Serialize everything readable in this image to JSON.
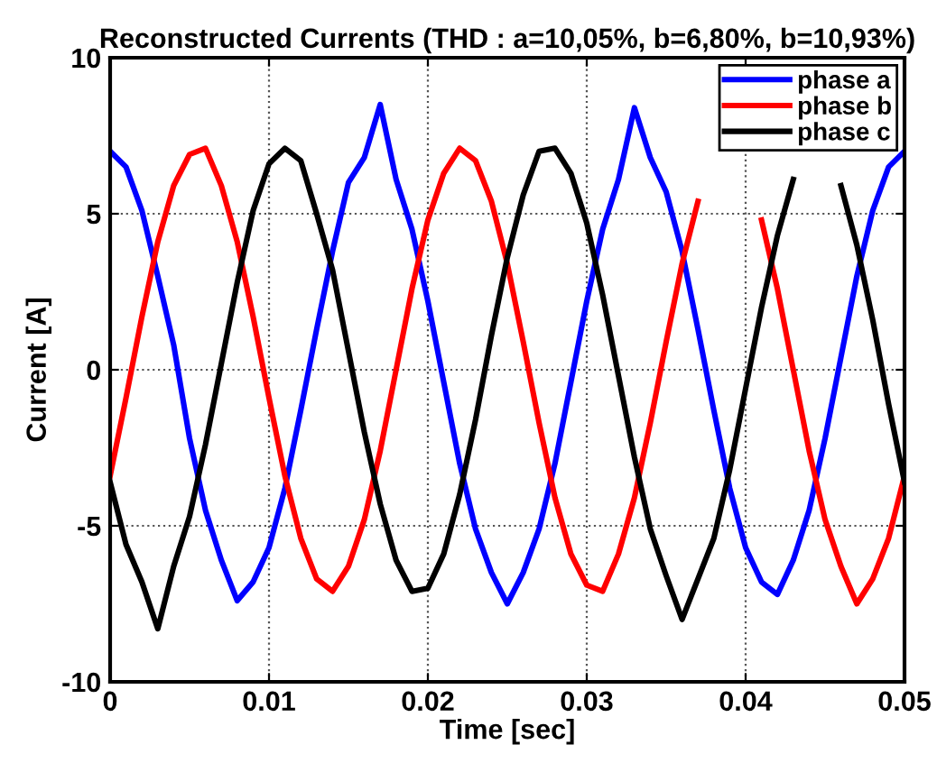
{
  "chart_data": {
    "type": "line",
    "title": "Reconstructed Currents (THD : a=10,05%, b=6,80%, b=10,93%)",
    "xlabel": "Time [sec]",
    "ylabel": "Current [A]",
    "x": [
      0,
      0.001,
      0.002,
      0.003,
      0.004,
      0.005,
      0.006,
      0.007,
      0.008,
      0.009,
      0.01,
      0.011,
      0.012,
      0.013,
      0.014,
      0.015,
      0.016,
      0.017,
      0.018,
      0.019,
      0.02,
      0.021,
      0.022,
      0.023,
      0.024,
      0.025,
      0.026,
      0.027,
      0.028,
      0.029,
      0.03,
      0.031,
      0.032,
      0.033,
      0.034,
      0.035,
      0.036,
      0.037,
      0.038,
      0.039,
      0.04,
      0.041,
      0.042,
      0.043,
      0.044,
      0.045,
      0.046,
      0.047,
      0.048,
      0.049,
      0.05
    ],
    "series": [
      {
        "name": "phase a",
        "color": "#0000ff",
        "values": [
          7,
          6.5,
          5.1,
          3.0,
          0.8,
          -2.2,
          -4.5,
          -6.1,
          -7.4,
          -6.8,
          -5.7,
          -3.8,
          -1.3,
          1.3,
          3.8,
          6.0,
          6.8,
          8.5,
          6.1,
          4.5,
          2.2,
          -0.4,
          -3.0,
          -5.1,
          -6.5,
          -7.5,
          -6.5,
          -5.1,
          -3.0,
          -0.4,
          2.2,
          4.5,
          6.1,
          8.4,
          6.8,
          5.7,
          3.8,
          1.3,
          -1.3,
          -3.8,
          -5.7,
          -6.8,
          -7.2,
          -6.1,
          -4.5,
          -2.2,
          0.4,
          3.0,
          5.1,
          6.5,
          7
        ]
      },
      {
        "name": "phase b",
        "color": "#ff0000",
        "values": [
          -3.4,
          -0.9,
          1.7,
          4.1,
          5.9,
          6.9,
          7.1,
          5.9,
          4.1,
          1.7,
          -0.9,
          -3.4,
          -5.4,
          -6.7,
          -7.1,
          -6.3,
          -4.8,
          -2.6,
          0,
          2.6,
          4.8,
          6.3,
          7.1,
          6.7,
          5.4,
          3.4,
          0.9,
          -1.7,
          -4.1,
          -5.9,
          -6.9,
          -7.1,
          -5.9,
          -4.1,
          -1.7,
          0.9,
          3.4,
          5.4,
          null,
          null,
          null,
          4.8,
          2.6,
          0,
          -2.6,
          -4.8,
          -6.3,
          -7.5,
          -6.7,
          -5.4,
          -3.4
        ]
      },
      {
        "name": "phase c",
        "color": "#000000",
        "values": [
          -3.6,
          -5.6,
          -6.8,
          -8.3,
          -6.3,
          -4.7,
          -2.4,
          0.2,
          2.8,
          5.1,
          6.6,
          7.1,
          6.7,
          5.0,
          3.2,
          0.6,
          -2.0,
          -4.3,
          -6.1,
          -7.1,
          -7.0,
          -5.9,
          -4.0,
          -1.6,
          1.1,
          3.6,
          5.6,
          7.0,
          7.1,
          6.3,
          4.7,
          2.4,
          -0.2,
          -2.8,
          -5.1,
          -6.6,
          -8.0,
          -6.7,
          -5.4,
          -3.2,
          -0.6,
          2.0,
          4.3,
          6.1,
          null,
          null,
          5.9,
          4.0,
          1.6,
          -1.1,
          -3.6
        ]
      }
    ],
    "xlim": [
      0,
      0.05
    ],
    "xticks": [
      0,
      0.01,
      0.02,
      0.03,
      0.04,
      0.05
    ],
    "ylim": [
      -10,
      10
    ],
    "yticks": [
      -10,
      -5,
      0,
      5,
      10
    ],
    "grid": true,
    "legend": "top right",
    "line_style": "solid",
    "marker": "none"
  }
}
